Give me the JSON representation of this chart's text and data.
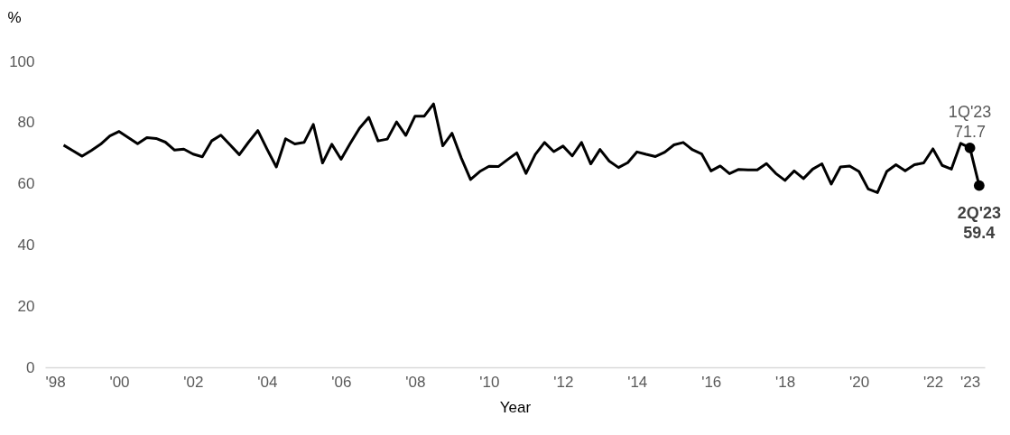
{
  "chart_data": {
    "type": "line",
    "xlabel": "Year",
    "ylabel": "%",
    "x": [
      1998.5,
      1998.75,
      1999.0,
      1999.25,
      1999.5,
      1999.75,
      2000.0,
      2000.25,
      2000.5,
      2000.75,
      2001.0,
      2001.25,
      2001.5,
      2001.75,
      2002.0,
      2002.25,
      2002.5,
      2002.75,
      2003.0,
      2003.25,
      2003.5,
      2003.75,
      2004.0,
      2004.25,
      2004.5,
      2004.75,
      2005.0,
      2005.25,
      2005.5,
      2005.75,
      2006.0,
      2006.25,
      2006.5,
      2006.75,
      2007.0,
      2007.25,
      2007.5,
      2007.75,
      2008.0,
      2008.25,
      2008.5,
      2008.75,
      2009.0,
      2009.25,
      2009.5,
      2009.75,
      2010.0,
      2010.25,
      2010.5,
      2010.75,
      2011.0,
      2011.25,
      2011.5,
      2011.75,
      2012.0,
      2012.25,
      2012.5,
      2012.75,
      2013.0,
      2013.25,
      2013.5,
      2013.75,
      2014.0,
      2014.25,
      2014.5,
      2014.75,
      2015.0,
      2015.25,
      2015.5,
      2015.75,
      2016.0,
      2016.25,
      2016.5,
      2016.75,
      2017.0,
      2017.25,
      2017.5,
      2017.75,
      2018.0,
      2018.25,
      2018.5,
      2018.75,
      2019.0,
      2019.25,
      2019.5,
      2019.75,
      2020.0,
      2020.25,
      2020.5,
      2020.75,
      2021.0,
      2021.25,
      2021.5,
      2021.75,
      2022.0,
      2022.25,
      2022.5,
      2022.75,
      2023.0,
      2023.25
    ],
    "series": [
      {
        "color": "#000000",
        "values": [
          72.6,
          70.8,
          69.0,
          70.9,
          72.9,
          75.6,
          77.1,
          75.1,
          73.1,
          75.1,
          74.8,
          73.6,
          71.0,
          71.3,
          69.7,
          68.8,
          74.0,
          75.9,
          72.7,
          69.5,
          73.6,
          77.4,
          71.3,
          65.5,
          74.7,
          73.0,
          73.5,
          79.4,
          66.8,
          72.9,
          68.0,
          73.2,
          78.2,
          81.7,
          74.0,
          74.6,
          80.2,
          75.8,
          82.1,
          82.1,
          86.1,
          72.4,
          76.5,
          68.4,
          61.4,
          64.0,
          65.7,
          65.6,
          67.9,
          70.1,
          63.4,
          69.6,
          73.5,
          70.5,
          72.3,
          69.1,
          73.5,
          66.5,
          71.2,
          67.4,
          65.3,
          66.9,
          70.4,
          69.6,
          68.9,
          70.3,
          72.7,
          73.5,
          71.1,
          69.7,
          64.2,
          65.8,
          63.3,
          64.7,
          64.5,
          64.5,
          66.6,
          63.4,
          61.1,
          64.2,
          61.7,
          64.8,
          66.5,
          59.9,
          65.5,
          65.8,
          64.0,
          58.3,
          57.1,
          64.0,
          66.2,
          64.2,
          66.2,
          66.8,
          71.4,
          66.0,
          64.8,
          73.2,
          71.7,
          59.4
        ]
      }
    ],
    "xlim": [
      1998,
      2023.4
    ],
    "xticks": [
      {
        "value": 1998,
        "label": "'98"
      },
      {
        "value": 2000,
        "label": "'00"
      },
      {
        "value": 2002,
        "label": "'02"
      },
      {
        "value": 2004,
        "label": "'04"
      },
      {
        "value": 2006,
        "label": "'06"
      },
      {
        "value": 2008,
        "label": "'08"
      },
      {
        "value": 2010,
        "label": "'10"
      },
      {
        "value": 2012,
        "label": "'12"
      },
      {
        "value": 2014,
        "label": "'14"
      },
      {
        "value": 2016,
        "label": "'16"
      },
      {
        "value": 2018,
        "label": "'18"
      },
      {
        "value": 2020,
        "label": "'20"
      },
      {
        "value": 2022,
        "label": "'22"
      },
      {
        "value": 2023,
        "label": "'23"
      }
    ],
    "ylim": [
      0,
      100
    ],
    "yticks": [
      0,
      20,
      40,
      60,
      80,
      100
    ],
    "grid": false,
    "marker": "none",
    "line_style": "solid",
    "annotations": [
      {
        "text": "1Q'23\n71.7",
        "x": 2023.0,
        "y": 71.7
      },
      {
        "text": "2Q'23\n59.4",
        "x": 2023.25,
        "y": 59.4
      }
    ]
  }
}
